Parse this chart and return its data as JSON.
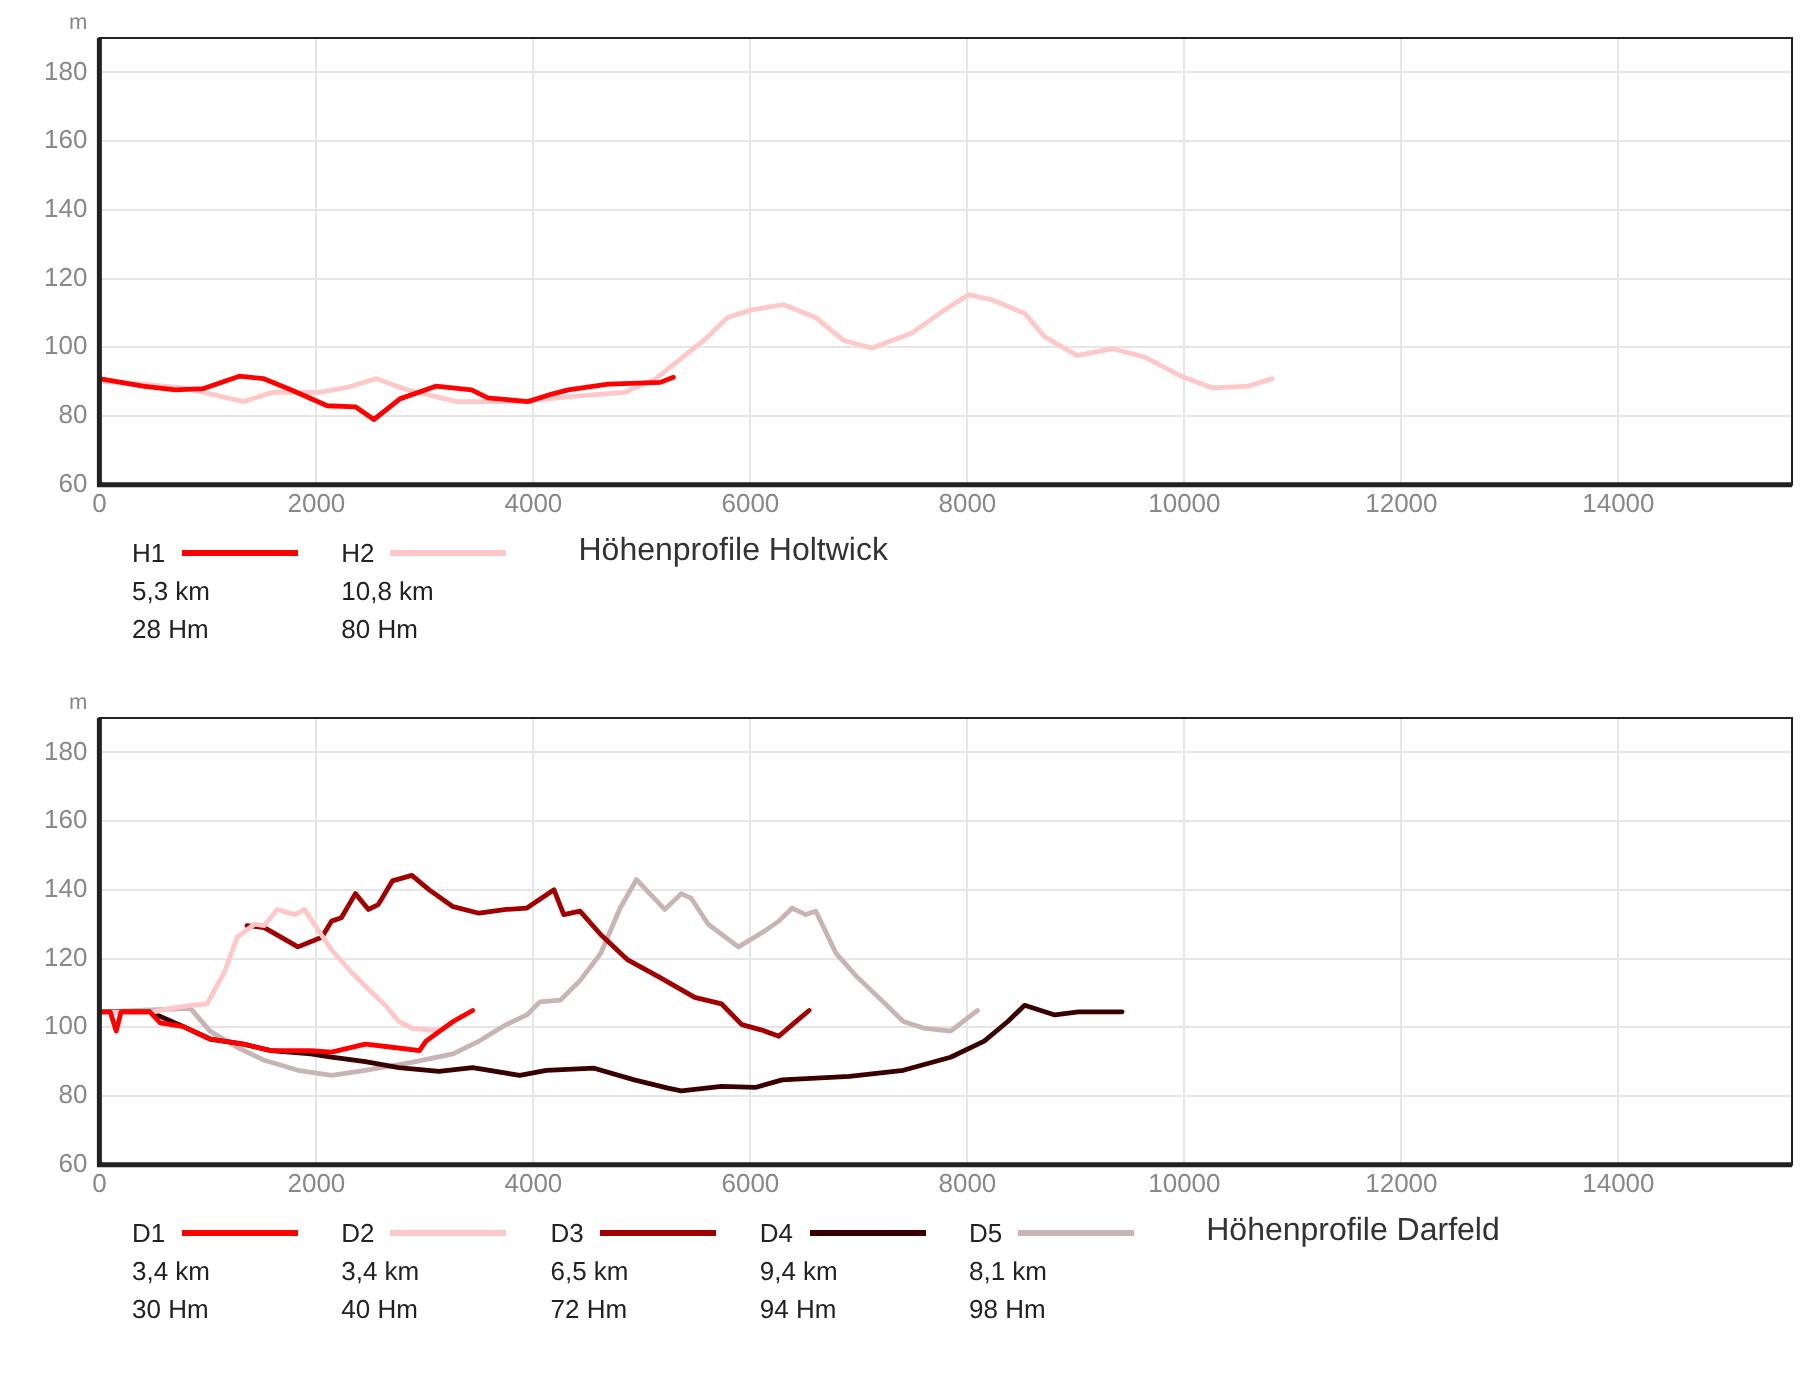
{
  "chart_data": [
    {
      "type": "line",
      "title": "Höhenprofile Holtwick",
      "ylabel": "m",
      "xlim": [
        0,
        15600
      ],
      "xticks": [
        0,
        2000,
        4000,
        6000,
        8000,
        10000,
        12000,
        14000
      ],
      "ylim": [
        60,
        190
      ],
      "yticks": [
        60,
        80,
        100,
        120,
        140,
        160,
        180
      ],
      "grid": true,
      "legend": "bottom",
      "marker": "none",
      "line_style": "solid",
      "annotations": [
        "5,3 km",
        "28 Hm",
        "10,8 km",
        "80 Hm"
      ],
      "series": [
        {
          "name": "H1",
          "color": "#ff0000",
          "x": [
            0,
            400,
            700,
            960,
            1290,
            1510,
            1770,
            2100,
            2360,
            2530,
            2770,
            3100,
            3430,
            3580,
            3950,
            4170,
            4320,
            4690,
            5170,
            5290
          ],
          "values": [
            90.9,
            88.7,
            87.6,
            88,
            91.6,
            90.9,
            87.6,
            83,
            82.7,
            79,
            85,
            88.7,
            87.6,
            85.3,
            84.2,
            86.4,
            87.6,
            89.3,
            89.8,
            91.3
          ]
        },
        {
          "name": "H2",
          "color": "#ffc8c8",
          "x": [
            0,
            400,
            775,
            1030,
            1330,
            1590,
            2030,
            2290,
            2550,
            2840,
            3290,
            3880,
            4390,
            4840,
            5130,
            5570,
            5790,
            6010,
            6310,
            6600,
            6860,
            7120,
            7490,
            7790,
            8010,
            8230,
            8530,
            8710,
            9010,
            9340,
            9640,
            9970,
            10260,
            10590,
            10810
          ],
          "values": [
            90.2,
            89.3,
            88.2,
            86.4,
            84.2,
            86.9,
            86.9,
            88.4,
            90.9,
            87.6,
            84.2,
            84.2,
            85.8,
            86.9,
            90.9,
            102,
            108.7,
            110.9,
            112.4,
            108.7,
            102,
            99.8,
            104.2,
            110.9,
            115.3,
            113.8,
            109.8,
            103.1,
            97.6,
            99.6,
            97.1,
            91.6,
            88.2,
            88.7,
            90.9
          ]
        }
      ]
    },
    {
      "type": "line",
      "title": "Höhenprofile Darfeld",
      "ylabel": "m",
      "xlim": [
        0,
        15600
      ],
      "xticks": [
        0,
        2000,
        4000,
        6000,
        8000,
        10000,
        12000,
        14000
      ],
      "ylim": [
        60,
        190
      ],
      "yticks": [
        60,
        80,
        100,
        120,
        140,
        160,
        180
      ],
      "grid": true,
      "legend": "bottom",
      "marker": "none",
      "line_style": "solid",
      "annotations": [
        "3,4 km",
        "30 Hm",
        "3,4 km",
        "40 Hm",
        "6,5 km",
        "72 Hm",
        "9,4 km",
        "94 Hm",
        "8,1 km",
        "98 Hm"
      ],
      "series": [
        {
          "name": "D1",
          "color": "#ff0000",
          "x": [
            0,
            100,
            155,
            200,
            465,
            560,
            775,
            1020,
            1330,
            1580,
            1950,
            2140,
            2450,
            2700,
            2950,
            3010,
            3260,
            3440
          ],
          "values": [
            104.5,
            104.5,
            98.9,
            104.5,
            104.5,
            101.3,
            100.2,
            96.6,
            95.1,
            93.2,
            93.2,
            92.8,
            95.1,
            94.2,
            93.2,
            96,
            101.7,
            104.9
          ]
        },
        {
          "name": "D2",
          "color": "#ffc8c8",
          "x": [
            0,
            465,
            650,
            840,
            990,
            1150,
            1270,
            1430,
            1520,
            1640,
            1800,
            1890,
            1980,
            2140,
            2330,
            2480,
            2635,
            2760,
            2880,
            3040,
            3130
          ],
          "values": [
            104.5,
            104.2,
            105.5,
            106.4,
            106.8,
            115.8,
            126.2,
            130,
            129.6,
            134.3,
            132.8,
            134.3,
            130,
            122.5,
            115.8,
            111.1,
            106.4,
            101.7,
            99.8,
            99.2,
            99
          ]
        },
        {
          "name": "D3",
          "color": "#a00000",
          "x": [
            1360,
            1520,
            1830,
            2050,
            2140,
            2230,
            2360,
            2480,
            2570,
            2700,
            2880,
            3040,
            3260,
            3500,
            3750,
            3940,
            4190,
            4280,
            4430,
            4620,
            4870,
            5177,
            5487,
            5735,
            5921,
            6107,
            6262,
            6386,
            6541
          ],
          "values": [
            129.6,
            129,
            123.4,
            126.2,
            130.9,
            131.9,
            138.9,
            134.3,
            135.7,
            142.6,
            144.2,
            140,
            135.1,
            133.2,
            134.3,
            134.7,
            140,
            132.8,
            133.8,
            127,
            119.6,
            114.3,
            108.7,
            106.8,
            100.8,
            99.2,
            97.4,
            100.8,
            104.9
          ]
        },
        {
          "name": "D4",
          "color": "#3a0000",
          "x": [
            0,
            465,
            775,
            1020,
            1330,
            1580,
            1950,
            2140,
            2450,
            2760,
            3130,
            3440,
            3875,
            4120,
            4560,
            4930,
            5240,
            5363,
            5735,
            6045,
            6293,
            6914,
            7410,
            7845,
            8155,
            8372,
            8527,
            8806,
            9023,
            9426
          ],
          "values": [
            104.5,
            104.5,
            100.2,
            96.6,
            95.1,
            93.2,
            92.3,
            91.3,
            90,
            88.3,
            87.2,
            88.3,
            86,
            87.5,
            88.1,
            84.7,
            82.3,
            81.5,
            82.8,
            82.5,
            84.7,
            85.7,
            87.5,
            91.3,
            96,
            101.7,
            106.4,
            103.6,
            104.5,
            104.5
          ]
        },
        {
          "name": "D5",
          "color": "#c8b4b4",
          "x": [
            0,
            840,
            1020,
            1270,
            1520,
            1830,
            2140,
            2450,
            2880,
            3260,
            3500,
            3750,
            3940,
            4060,
            4250,
            4430,
            4620,
            4800,
            4950,
            5211,
            5363,
            5456,
            5611,
            5890,
            6107,
            6262,
            6386,
            6510,
            6603,
            6790,
            6976,
            7224,
            7410,
            7596,
            7845,
            8093
          ],
          "values": [
            104.5,
            105.5,
            98.9,
            94.2,
            90.4,
            87.5,
            86,
            87.5,
            89.8,
            92.3,
            96,
            100.8,
            103.6,
            107.4,
            107.9,
            113.6,
            121.5,
            134.7,
            143,
            134.3,
            138.9,
            137.5,
            130,
            123.4,
            127.5,
            130.9,
            134.7,
            132.8,
            133.8,
            121.5,
            114.9,
            107.4,
            101.7,
            99.8,
            98.9,
            104.9
          ]
        }
      ]
    }
  ]
}
